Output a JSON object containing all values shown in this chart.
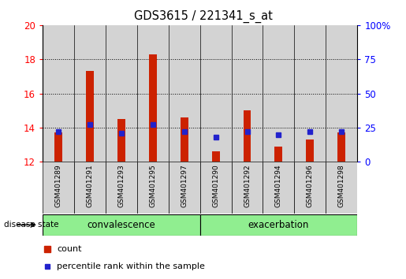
{
  "title": "GDS3615 / 221341_s_at",
  "samples": [
    "GSM401289",
    "GSM401291",
    "GSM401293",
    "GSM401295",
    "GSM401297",
    "GSM401290",
    "GSM401292",
    "GSM401294",
    "GSM401296",
    "GSM401298"
  ],
  "red_values": [
    13.7,
    17.3,
    14.5,
    18.3,
    14.6,
    12.6,
    15.0,
    12.9,
    13.3,
    13.7
  ],
  "blue_percentiles": [
    22,
    27,
    21,
    27,
    22,
    18,
    22,
    20,
    22,
    22
  ],
  "bar_bottom": 12,
  "ylim_left": [
    12,
    20
  ],
  "ylim_right": [
    0,
    100
  ],
  "yticks_left": [
    12,
    14,
    16,
    18,
    20
  ],
  "yticks_right": [
    0,
    25,
    50,
    75,
    100
  ],
  "left_tick_labels": [
    "12",
    "14",
    "16",
    "18",
    "20"
  ],
  "right_tick_labels": [
    "0",
    "25",
    "50",
    "75",
    "100%"
  ],
  "group1_label": "convalescence",
  "group2_label": "exacerbation",
  "group1_indices": [
    0,
    1,
    2,
    3,
    4
  ],
  "group2_indices": [
    5,
    6,
    7,
    8,
    9
  ],
  "disease_state_label": "disease state",
  "legend_red": "count",
  "legend_blue": "percentile rank within the sample",
  "bar_color": "#CC2200",
  "blue_color": "#2222CC",
  "group_bg_color": "#90EE90",
  "sample_bg_color": "#D3D3D3",
  "gridline_ticks": [
    14,
    16,
    18
  ]
}
